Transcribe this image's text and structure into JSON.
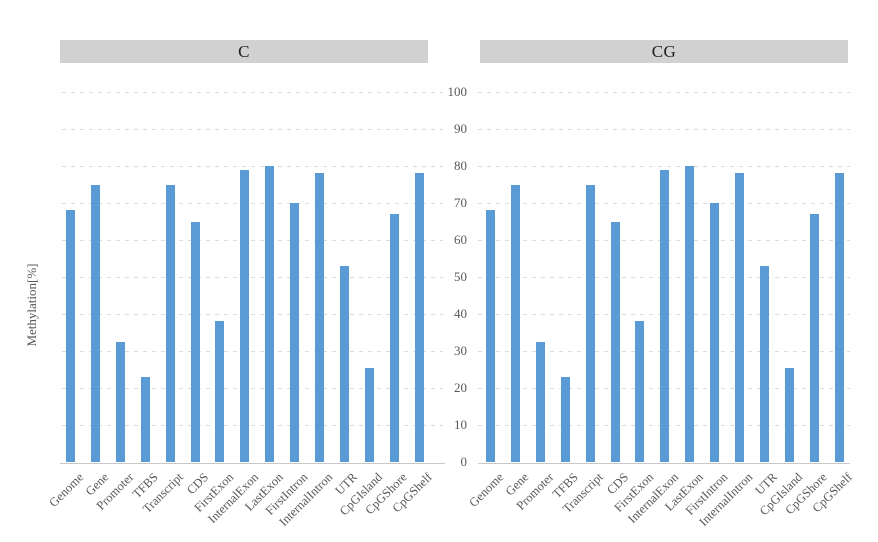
{
  "chart_data": {
    "type": "bar",
    "title": "",
    "xlabel": "",
    "ylabel": "Methylation[%]",
    "ylim": [
      0,
      100
    ],
    "yticks": [
      0,
      10,
      20,
      30,
      40,
      50,
      60,
      70,
      80,
      90,
      100
    ],
    "grid": "horizontal-dashed",
    "legend": "none",
    "panel_layout": "two-panels-side-by-side-shared-y-axis",
    "categories": [
      "Genome",
      "Gene",
      "Promoter",
      "TFBS",
      "Transcript",
      "CDS",
      "FirstExon",
      "InternalExon",
      "LastExon",
      "FirstIntron",
      "InternalIntron",
      "UTR",
      "CpGIsland",
      "CpGShore",
      "CpGShelf"
    ],
    "series": [
      {
        "name": "C",
        "values": [
          68,
          75,
          32.5,
          23,
          75,
          65,
          38,
          79,
          80,
          70,
          78,
          53,
          25.5,
          67,
          78
        ]
      },
      {
        "name": "CG",
        "values": [
          68,
          75,
          32.5,
          23,
          75,
          65,
          38,
          79,
          80,
          70,
          78,
          53,
          25.5,
          67,
          78
        ]
      }
    ],
    "colors": {
      "bar": "#5b9bd5",
      "panel_header_bg": "#d1d1d1",
      "gridline": "#dcdcdc",
      "axis_line": "#c9c9c9",
      "tick_text": "#595959",
      "header_text": "#1f1f1f"
    }
  }
}
